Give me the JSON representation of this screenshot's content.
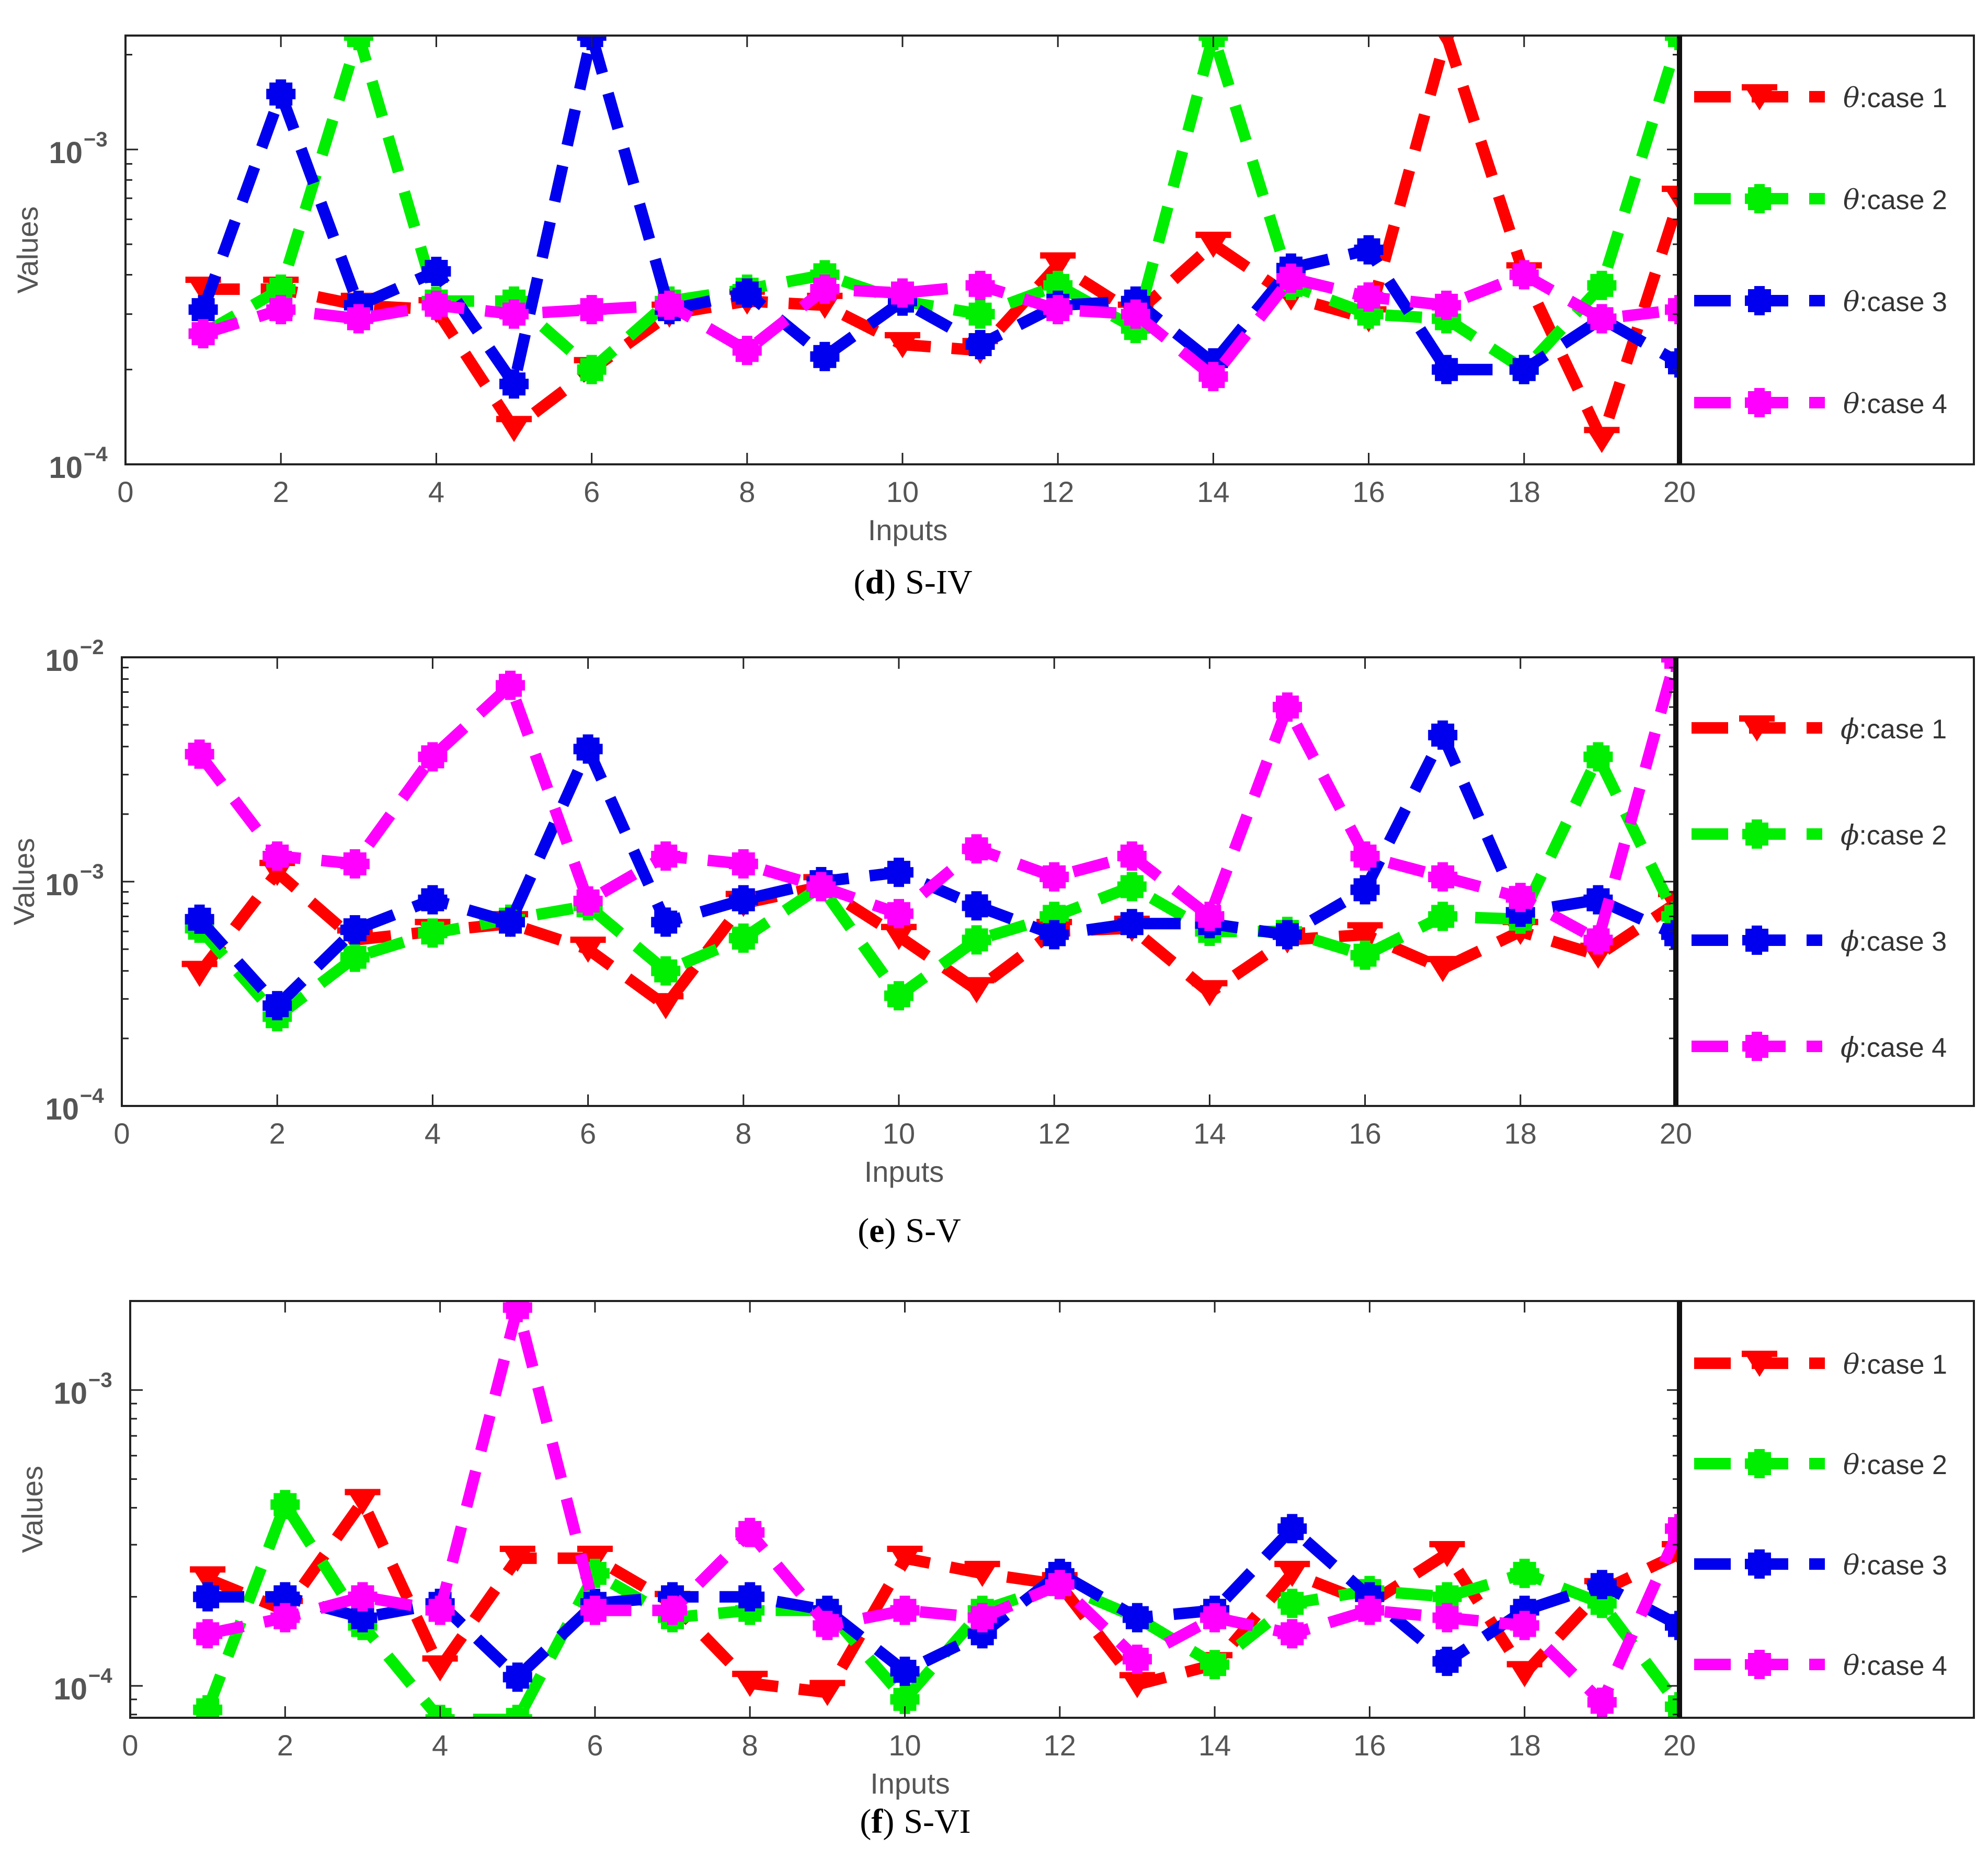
{
  "chart_data": [
    {
      "type": "line",
      "panel_letter": "d",
      "panel_name": "S-IV",
      "caption_open": "(",
      "caption_close": ")",
      "xlabel": "Inputs",
      "ylabel": "Values",
      "xlim": [
        0,
        20
      ],
      "ylim": [
        0.0001,
        0.0023
      ],
      "yscale": "log",
      "x_ticks": [
        "0",
        "2",
        "4",
        "6",
        "8",
        "10",
        "12",
        "14",
        "16",
        "18",
        "20"
      ],
      "y_ticks": [
        {
          "base": "10",
          "exp": "−3",
          "value": 0.001
        },
        {
          "base": "10",
          "exp": "−4",
          "value": 0.0001
        }
      ],
      "legend_placement": "right",
      "x": [
        1,
        2,
        3,
        4,
        5,
        6,
        7,
        8,
        9,
        10,
        11,
        12,
        13,
        14,
        15,
        16,
        17,
        18,
        19,
        20
      ],
      "series": [
        {
          "name": "θ:case 1",
          "symbol": "θ",
          "label": ":case 1",
          "color": "#ff0000",
          "marker": "triangle-down",
          "values": [
            0.00036,
            0.00036,
            0.00032,
            0.00031,
            0.00013,
            0.0002,
            0.0003,
            0.00033,
            0.00032,
            0.00024,
            0.00023,
            0.00043,
            0.0003,
            0.0005,
            0.00034,
            0.00029,
            0.0023,
            0.0004,
            0.00012,
            0.0007
          ]
        },
        {
          "name": "θ:case 2",
          "symbol": "θ",
          "label": ":case 2",
          "color": "#00ee00",
          "marker": "star",
          "values": [
            0.00026,
            0.00036,
            0.0023,
            0.00033,
            0.00033,
            0.0002,
            0.00033,
            0.00036,
            0.0004,
            0.00033,
            0.0003,
            0.00037,
            0.00027,
            0.0023,
            0.00037,
            0.0003,
            0.00029,
            0.0002,
            0.00037,
            0.0023
          ]
        },
        {
          "name": "θ:case 3",
          "symbol": "θ",
          "label": ":case 3",
          "color": "#0000ee",
          "marker": "star",
          "values": [
            0.00031,
            0.0015,
            0.00032,
            0.00041,
            0.00018,
            0.0023,
            0.00031,
            0.00035,
            0.00022,
            0.00033,
            0.00024,
            0.00032,
            0.00033,
            0.00021,
            0.00042,
            0.00048,
            0.0002,
            0.0002,
            0.00029,
            0.00021
          ]
        },
        {
          "name": "θ:case 4",
          "symbol": "θ",
          "label": ":case 4",
          "color": "#ff00ff",
          "marker": "star",
          "values": [
            0.00026,
            0.00031,
            0.00029,
            0.00032,
            0.0003,
            0.00031,
            0.00032,
            0.00023,
            0.00036,
            0.00035,
            0.00037,
            0.00031,
            0.0003,
            0.00019,
            0.00039,
            0.00034,
            0.00032,
            0.0004,
            0.00029,
            0.00031
          ]
        }
      ]
    },
    {
      "type": "line",
      "panel_letter": "e",
      "panel_name": "S-V",
      "caption_open": "(",
      "caption_close": ")",
      "xlabel": "Inputs",
      "ylabel": "Values",
      "xlim": [
        0,
        20
      ],
      "ylim": [
        0.0001,
        0.01
      ],
      "yscale": "log",
      "x_ticks": [
        "0",
        "2",
        "4",
        "6",
        "8",
        "10",
        "12",
        "14",
        "16",
        "18",
        "20"
      ],
      "y_ticks": [
        {
          "base": "10",
          "exp": "−2",
          "value": 0.01
        },
        {
          "base": "10",
          "exp": "−3",
          "value": 0.001
        },
        {
          "base": "10",
          "exp": "−4",
          "value": 0.0001
        }
      ],
      "legend_placement": "right",
      "x": [
        1,
        2,
        3,
        4,
        5,
        6,
        7,
        8,
        9,
        10,
        11,
        12,
        13,
        14,
        15,
        16,
        17,
        18,
        19,
        20
      ],
      "series": [
        {
          "name": "ϕ:case 1",
          "symbol": "ϕ",
          "label": ":case 1",
          "color": "#ff0000",
          "marker": "triangle-down",
          "values": [
            0.00039,
            0.0011,
            0.00055,
            0.0006,
            0.00065,
            0.0005,
            0.00028,
            0.0008,
            0.00095,
            0.00057,
            0.00033,
            0.0006,
            0.00062,
            0.00032,
            0.00055,
            0.00058,
            0.00041,
            0.0006,
            0.00047,
            0.0008
          ]
        },
        {
          "name": "ϕ:case 2",
          "symbol": "ϕ",
          "label": ":case 2",
          "color": "#00ee00",
          "marker": "star",
          "values": [
            0.00062,
            0.00025,
            0.00046,
            0.00059,
            0.00068,
            0.00078,
            0.0004,
            0.00056,
            0.00095,
            0.00031,
            0.00055,
            0.0007,
            0.00095,
            0.0006,
            0.0006,
            0.00047,
            0.0007,
            0.00068,
            0.0036,
            0.0007
          ]
        },
        {
          "name": "ϕ:case 3",
          "symbol": "ϕ",
          "label": ":case 3",
          "color": "#0000ee",
          "marker": "star",
          "values": [
            0.00068,
            0.00028,
            0.00061,
            0.00083,
            0.00066,
            0.0039,
            0.00066,
            0.00083,
            0.001,
            0.0011,
            0.00078,
            0.00058,
            0.00065,
            0.00065,
            0.00058,
            0.00092,
            0.0045,
            0.00073,
            0.00083,
            0.00058
          ]
        },
        {
          "name": "ϕ:case 4",
          "symbol": "ϕ",
          "label": ":case 4",
          "color": "#ff00ff",
          "marker": "star",
          "values": [
            0.0037,
            0.0013,
            0.0012,
            0.0036,
            0.0075,
            0.00082,
            0.0013,
            0.0012,
            0.00095,
            0.00072,
            0.0014,
            0.00105,
            0.0013,
            0.0007,
            0.006,
            0.0013,
            0.00105,
            0.00085,
            0.00055,
            0.01
          ]
        }
      ]
    },
    {
      "type": "line",
      "panel_letter": "f",
      "panel_name": "S-VI",
      "caption_open": "(",
      "caption_close": ")",
      "xlabel": "Inputs",
      "ylabel": "Values",
      "xlim": [
        0,
        20
      ],
      "ylim": [
        7.8e-05,
        0.002
      ],
      "yscale": "log",
      "x_ticks": [
        "0",
        "2",
        "4",
        "6",
        "8",
        "10",
        "12",
        "14",
        "16",
        "18",
        "20"
      ],
      "y_ticks": [
        {
          "base": "10",
          "exp": "−3",
          "value": 0.001
        },
        {
          "base": "10",
          "exp": "−4",
          "value": 0.0001
        }
      ],
      "legend_placement": "right",
      "x": [
        1,
        2,
        3,
        4,
        5,
        6,
        7,
        8,
        9,
        10,
        11,
        12,
        13,
        14,
        15,
        16,
        17,
        18,
        19,
        20
      ],
      "series": [
        {
          "name": "θ:case 1",
          "symbol": "θ",
          "label": ":case 1",
          "color": "#ff0000",
          "marker": "triangle-down",
          "values": [
            0.00023,
            0.00018,
            0.00042,
            0.000115,
            0.00027,
            0.00027,
            0.00019,
            0.000102,
            9.5e-05,
            0.00027,
            0.00024,
            0.00022,
            0.000101,
            0.000118,
            0.00024,
            0.00019,
            0.00028,
            0.00011,
            0.00021,
            0.00028
          ]
        },
        {
          "name": "θ:case 2",
          "symbol": "θ",
          "label": ":case 2",
          "color": "#00ee00",
          "marker": "star",
          "values": [
            8.3e-05,
            0.00041,
            0.00016,
            7.7e-05,
            7.7e-05,
            0.00024,
            0.00017,
            0.00018,
            0.00018,
            9e-05,
            0.00018,
            0.00022,
            0.00017,
            0.000118,
            0.00019,
            0.00021,
            0.0002,
            0.00024,
            0.00019,
            8.5e-05
          ]
        },
        {
          "name": "θ:case 3",
          "symbol": "θ",
          "label": ":case 3",
          "color": "#0000ee",
          "marker": "star",
          "values": [
            0.0002,
            0.0002,
            0.00017,
            0.00019,
            0.000107,
            0.00019,
            0.0002,
            0.0002,
            0.00018,
            0.000112,
            0.00015,
            0.00024,
            0.00017,
            0.00018,
            0.00034,
            0.0002,
            0.000121,
            0.00018,
            0.00022,
            0.00016
          ]
        },
        {
          "name": "θ:case 4",
          "symbol": "θ",
          "label": ":case 4",
          "color": "#ff00ff",
          "marker": "star",
          "values": [
            0.00015,
            0.00017,
            0.0002,
            0.00018,
            0.0019,
            0.00018,
            0.00018,
            0.00033,
            0.00016,
            0.00018,
            0.00017,
            0.00022,
            0.000123,
            0.00017,
            0.00015,
            0.00018,
            0.00017,
            0.00016,
            8.8e-05,
            0.00034
          ]
        }
      ]
    }
  ]
}
